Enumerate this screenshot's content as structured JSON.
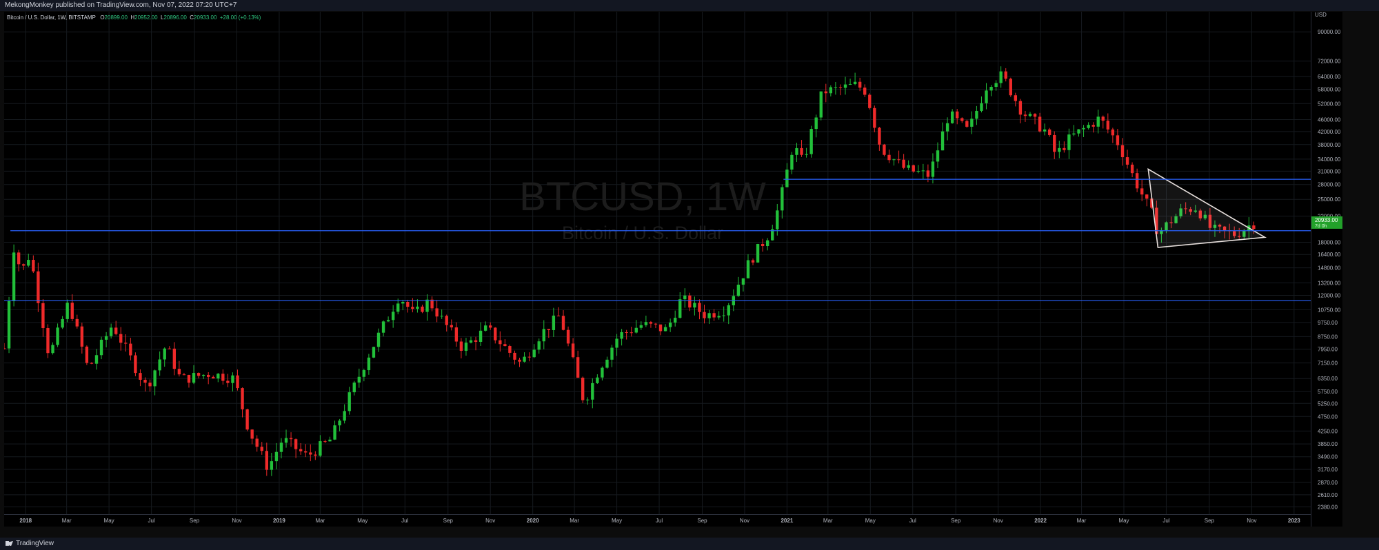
{
  "header": {
    "published_text": "MekongMonkey published on TradingView.com, Nov 07, 2022 07:20 UTC+7"
  },
  "legend": {
    "symbol_text": "Bitcoin / U.S. Dollar, 1W, BITSTAMP",
    "o_label": "O",
    "o_value": "20899.00",
    "h_label": "H",
    "h_value": "20952.00",
    "l_label": "L",
    "l_value": "20896.00",
    "c_label": "C",
    "c_value": "20933.00",
    "change": "+28.00 (+0.13%)"
  },
  "watermark": {
    "symbol": "BTCUSD, 1W",
    "name": "Bitcoin / U.S. Dollar"
  },
  "footer": {
    "brand": "TradingView"
  },
  "colors": {
    "up": "#26a69a",
    "up_bright": "#22c03a",
    "down": "#ef2a2a",
    "line": "#2962ff",
    "triangle": "#e8e0dd",
    "price_badge": "#22a12a"
  },
  "chart_data": {
    "type": "candlestick",
    "title": "Bitcoin / U.S. Dollar, 1W, BITSTAMP",
    "yscale": "log",
    "ylim": [
      2250,
      105000
    ],
    "currency": "USD",
    "y_ticks": [
      "90000.00",
      "72000.00",
      "64000.00",
      "58000.00",
      "52000.00",
      "46000.00",
      "42000.00",
      "38000.00",
      "34000.00",
      "31000.00",
      "28000.00",
      "25000.00",
      "22000.00",
      "18000.00",
      "16400.00",
      "14800.00",
      "13200.00",
      "12000.00",
      "10750.00",
      "9750.00",
      "8750.00",
      "7950.00",
      "7150.00",
      "6350.00",
      "5750.00",
      "5250.00",
      "4750.00",
      "4250.00",
      "3850.00",
      "3490.00",
      "3170.00",
      "2870.00",
      "2610.00",
      "2380.00"
    ],
    "x_range": [
      "2017-12-01",
      "2023-01-25"
    ],
    "x_ticks": [
      {
        "label": "2018",
        "date": "2018-01-01",
        "bold": true
      },
      {
        "label": "Mar",
        "date": "2018-03-01"
      },
      {
        "label": "May",
        "date": "2018-05-01"
      },
      {
        "label": "Jul",
        "date": "2018-07-01"
      },
      {
        "label": "Sep",
        "date": "2018-09-01"
      },
      {
        "label": "Nov",
        "date": "2018-11-01"
      },
      {
        "label": "2019",
        "date": "2019-01-01",
        "bold": true
      },
      {
        "label": "Mar",
        "date": "2019-03-01"
      },
      {
        "label": "May",
        "date": "2019-05-01"
      },
      {
        "label": "Jul",
        "date": "2019-07-01"
      },
      {
        "label": "Sep",
        "date": "2019-09-01"
      },
      {
        "label": "Nov",
        "date": "2019-11-01"
      },
      {
        "label": "2020",
        "date": "2020-01-01",
        "bold": true
      },
      {
        "label": "Mar",
        "date": "2020-03-01"
      },
      {
        "label": "May",
        "date": "2020-05-01"
      },
      {
        "label": "Jul",
        "date": "2020-07-01"
      },
      {
        "label": "Sep",
        "date": "2020-09-01"
      },
      {
        "label": "Nov",
        "date": "2020-11-01"
      },
      {
        "label": "2021",
        "date": "2021-01-01",
        "bold": true
      },
      {
        "label": "Mar",
        "date": "2021-03-01"
      },
      {
        "label": "May",
        "date": "2021-05-01"
      },
      {
        "label": "Jul",
        "date": "2021-07-01"
      },
      {
        "label": "Sep",
        "date": "2021-09-01"
      },
      {
        "label": "Nov",
        "date": "2021-11-01"
      },
      {
        "label": "2022",
        "date": "2022-01-01",
        "bold": true
      },
      {
        "label": "Mar",
        "date": "2022-03-01"
      },
      {
        "label": "May",
        "date": "2022-05-01"
      },
      {
        "label": "Jul",
        "date": "2022-07-01"
      },
      {
        "label": "Sep",
        "date": "2022-09-01"
      },
      {
        "label": "Nov",
        "date": "2022-11-01"
      },
      {
        "label": "2023",
        "date": "2023-01-01",
        "bold": true
      }
    ],
    "price_series": [
      {
        "date": "2017-12-01",
        "close": 8000
      },
      {
        "date": "2017-12-17",
        "close": 19300
      },
      {
        "date": "2017-12-24",
        "close": 14000
      },
      {
        "date": "2018-01-07",
        "close": 16500
      },
      {
        "date": "2018-02-04",
        "close": 7500
      },
      {
        "date": "2018-03-04",
        "close": 11400
      },
      {
        "date": "2018-04-01",
        "close": 6800
      },
      {
        "date": "2018-05-06",
        "close": 9600
      },
      {
        "date": "2018-06-24",
        "close": 5900
      },
      {
        "date": "2018-07-22",
        "close": 8200
      },
      {
        "date": "2018-08-12",
        "close": 6300
      },
      {
        "date": "2018-09-23",
        "close": 6600
      },
      {
        "date": "2018-10-28",
        "close": 6350
      },
      {
        "date": "2018-11-18",
        "close": 4300
      },
      {
        "date": "2018-12-16",
        "close": 3200
      },
      {
        "date": "2019-01-06",
        "close": 4000
      },
      {
        "date": "2019-02-10",
        "close": 3500
      },
      {
        "date": "2019-03-17",
        "close": 4000
      },
      {
        "date": "2019-04-07",
        "close": 5200
      },
      {
        "date": "2019-05-12",
        "close": 7800
      },
      {
        "date": "2019-06-23",
        "close": 12000
      },
      {
        "date": "2019-07-14",
        "close": 10300
      },
      {
        "date": "2019-08-04",
        "close": 11500
      },
      {
        "date": "2019-09-22",
        "close": 8000
      },
      {
        "date": "2019-10-27",
        "close": 9300
      },
      {
        "date": "2019-12-15",
        "close": 7100
      },
      {
        "date": "2020-01-12",
        "close": 8900
      },
      {
        "date": "2020-02-09",
        "close": 10300
      },
      {
        "date": "2020-03-15",
        "close": 5300
      },
      {
        "date": "2020-04-05",
        "close": 6800
      },
      {
        "date": "2020-05-03",
        "close": 8800
      },
      {
        "date": "2020-06-07",
        "close": 9600
      },
      {
        "date": "2020-07-12",
        "close": 9200
      },
      {
        "date": "2020-08-02",
        "close": 11700
      },
      {
        "date": "2020-09-06",
        "close": 10300
      },
      {
        "date": "2020-10-04",
        "close": 10800
      },
      {
        "date": "2020-11-08",
        "close": 15500
      },
      {
        "date": "2020-12-06",
        "close": 19200
      },
      {
        "date": "2020-12-20",
        "close": 23500
      },
      {
        "date": "2021-01-10",
        "close": 38000
      },
      {
        "date": "2021-01-24",
        "close": 33000
      },
      {
        "date": "2021-02-21",
        "close": 57000
      },
      {
        "date": "2021-03-14",
        "close": 58000
      },
      {
        "date": "2021-04-11",
        "close": 60000
      },
      {
        "date": "2021-04-25",
        "close": 57000
      },
      {
        "date": "2021-05-16",
        "close": 37000
      },
      {
        "date": "2021-06-20",
        "close": 31500
      },
      {
        "date": "2021-07-25",
        "close": 30000
      },
      {
        "date": "2021-08-22",
        "close": 48000
      },
      {
        "date": "2021-09-19",
        "close": 42000
      },
      {
        "date": "2021-10-17",
        "close": 61000
      },
      {
        "date": "2021-11-07",
        "close": 64500
      },
      {
        "date": "2021-12-05",
        "close": 49000
      },
      {
        "date": "2022-01-09",
        "close": 42000
      },
      {
        "date": "2022-01-23",
        "close": 35000
      },
      {
        "date": "2022-02-13",
        "close": 40000
      },
      {
        "date": "2022-03-27",
        "close": 46500
      },
      {
        "date": "2022-04-24",
        "close": 38000
      },
      {
        "date": "2022-05-15",
        "close": 29500
      },
      {
        "date": "2022-06-12",
        "close": 22000
      },
      {
        "date": "2022-06-19",
        "close": 19300
      },
      {
        "date": "2022-07-24",
        "close": 23000
      },
      {
        "date": "2022-08-14",
        "close": 23500
      },
      {
        "date": "2022-09-04",
        "close": 19800
      },
      {
        "date": "2022-10-09",
        "close": 19100
      },
      {
        "date": "2022-10-30",
        "close": 20600
      },
      {
        "date": "2022-11-06",
        "close": 20933
      }
    ],
    "horizontal_levels": [
      {
        "value": 29150.49,
        "label": "29150.49",
        "from": "2020-12-27"
      },
      {
        "value": 19666.0,
        "label": "19666.00",
        "from": "2017-12-10"
      },
      {
        "value": 11504.47,
        "label": "11504.47",
        "from": "2017-12-01"
      }
    ],
    "last_price": {
      "value": 20933.0,
      "label": "20933.00",
      "countdown": "7d 0h"
    },
    "triangle": [
      {
        "date": "2022-06-05",
        "price": 31500
      },
      {
        "date": "2022-06-19",
        "price": 17300
      },
      {
        "date": "2022-11-20",
        "price": 18700
      }
    ]
  }
}
